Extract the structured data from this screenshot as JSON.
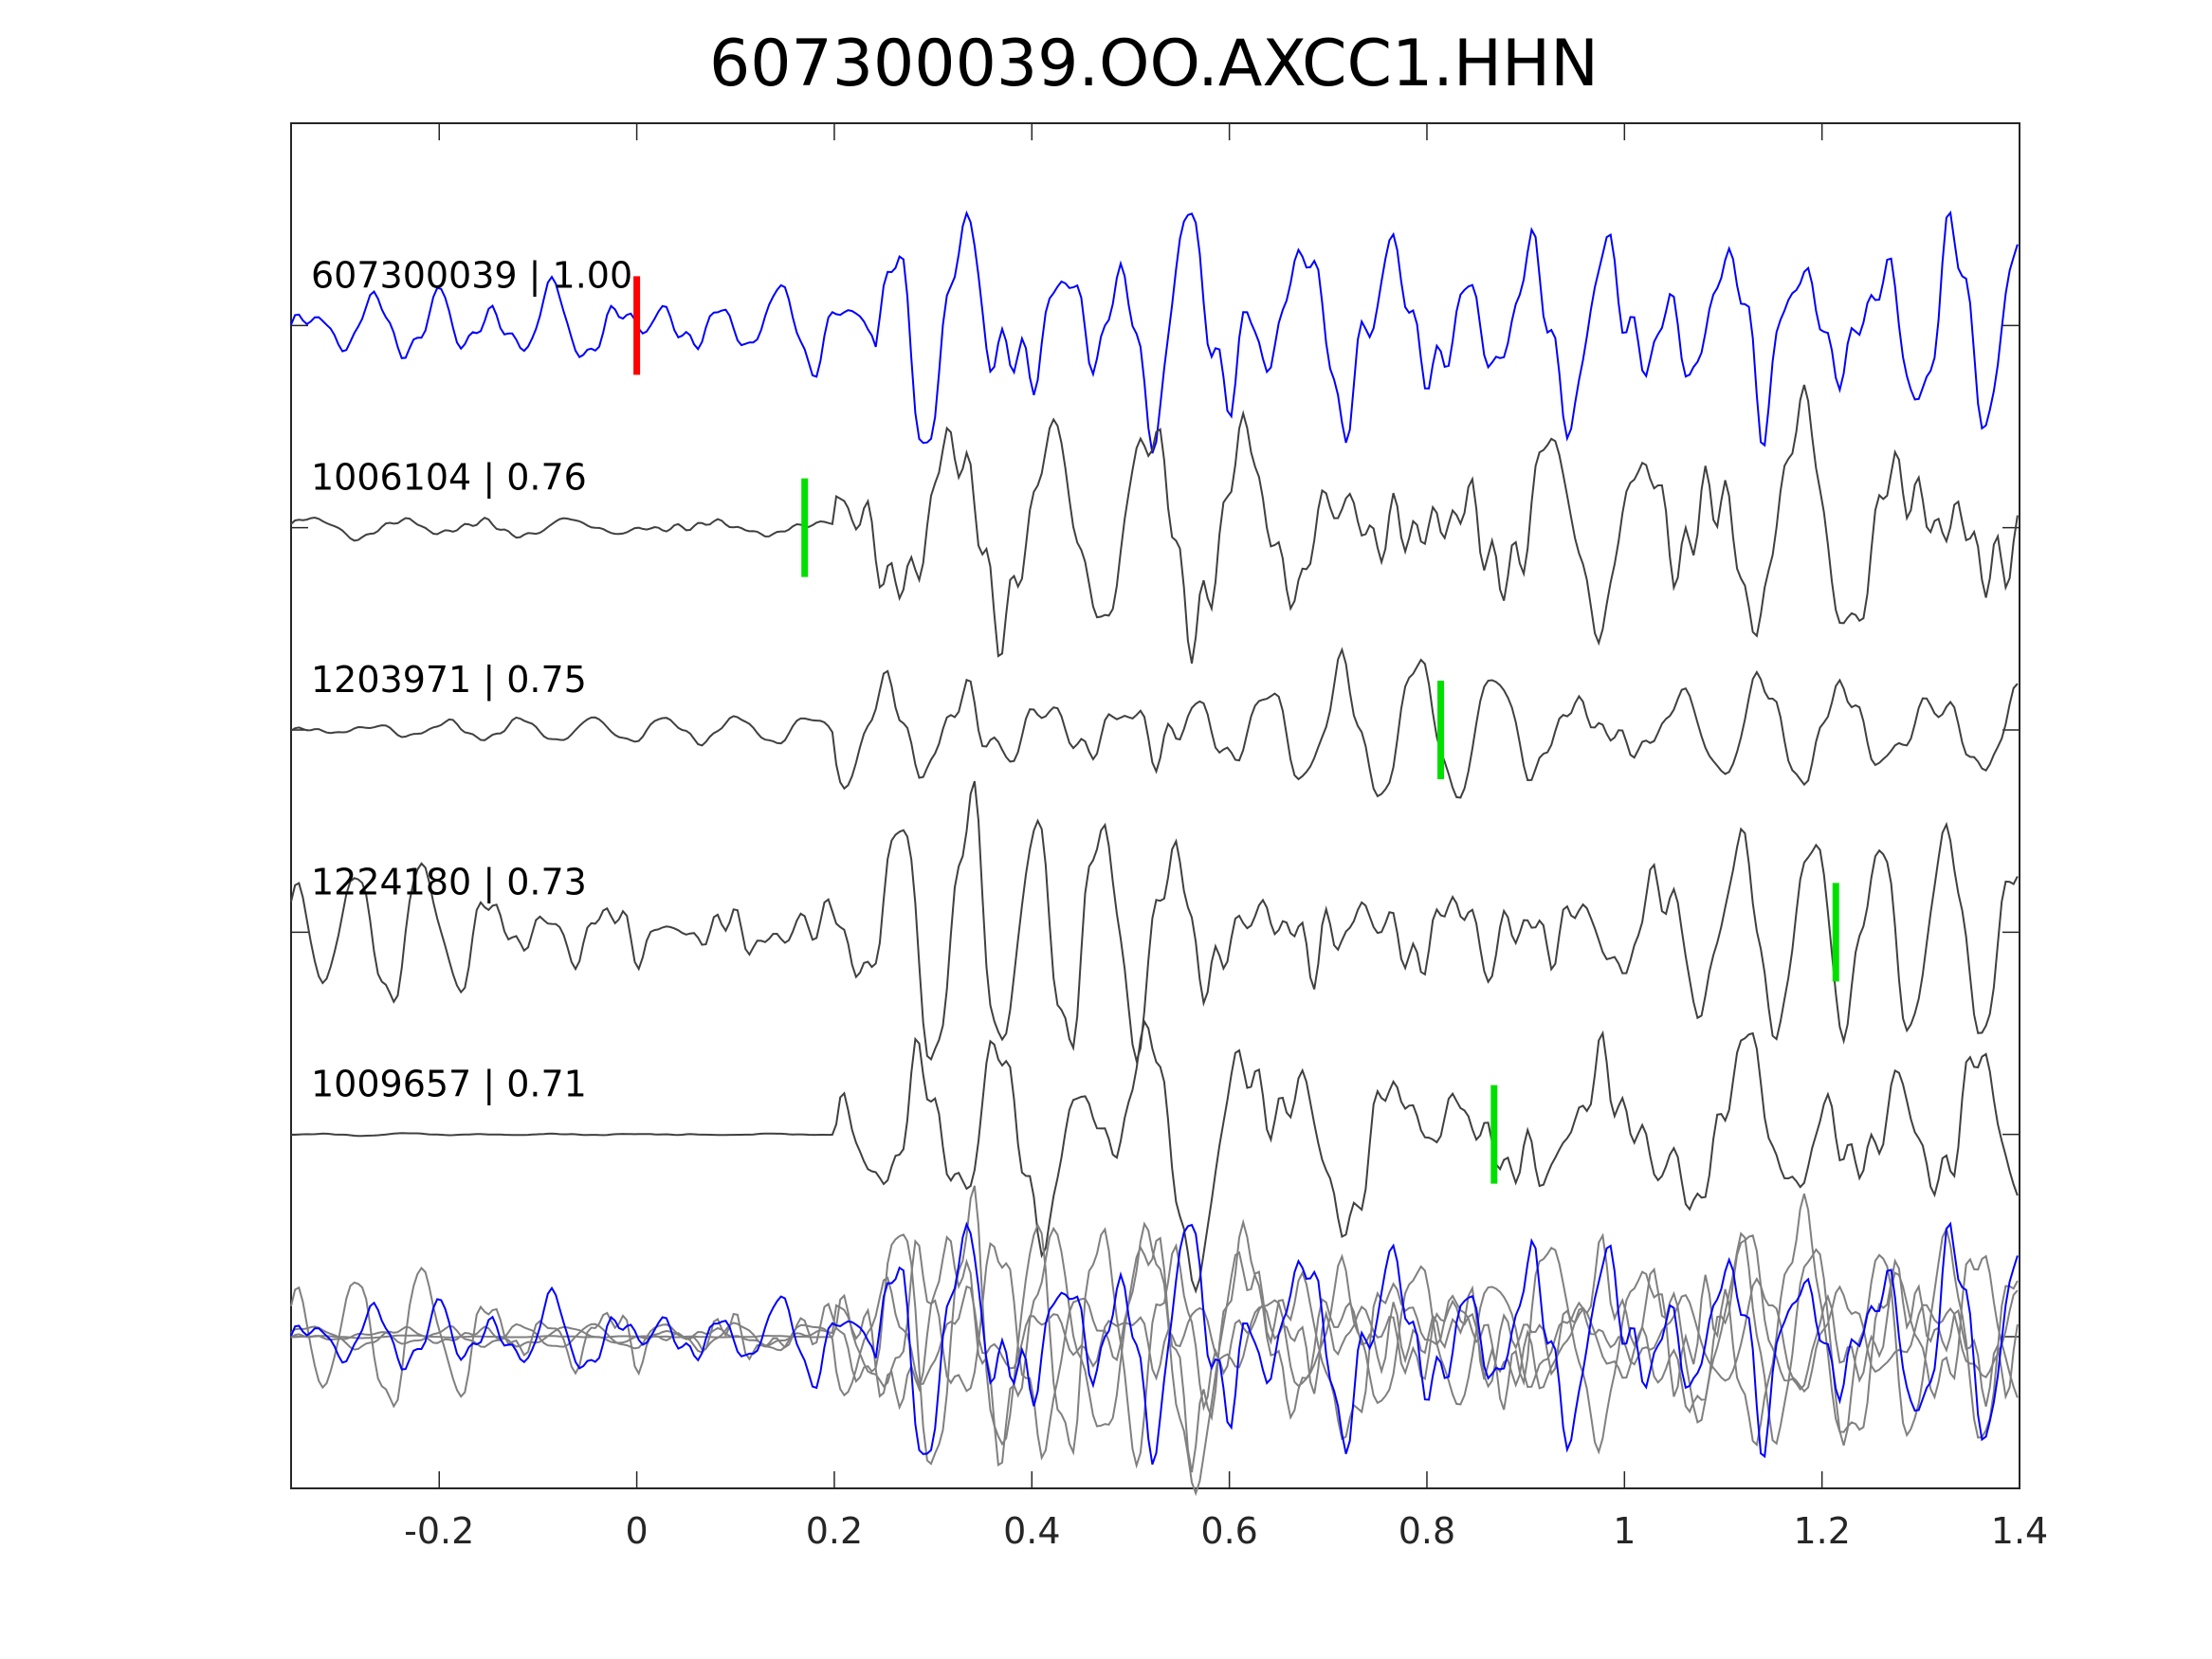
{
  "chart_data": {
    "type": "line",
    "title": "607300039.OO.AXCC1.HHN",
    "xlabel": "",
    "ylabel": "",
    "xlim": [
      -0.35,
      1.4
    ],
    "ylim": [
      -5.75,
      1.0
    ],
    "xticks": [
      "-0.2",
      "0",
      "0.2",
      "0.4",
      "0.6",
      "0.8",
      "1",
      "1.2",
      "1.4"
    ],
    "xtick_values": [
      -0.2,
      0,
      0.2,
      0.4,
      0.6,
      0.8,
      1.0,
      1.2,
      1.4
    ],
    "grid": false,
    "colors": {
      "master": "#0000ff",
      "trace": "#404040",
      "overlay": "#808080",
      "master_pick": "#ff0000",
      "pick": "#00e000",
      "axis": "#262626"
    },
    "traces": [
      {
        "label": "607300039 | 1.00",
        "offset": 0,
        "pick_time": 0.0,
        "pick_color": "#ff0000",
        "color": "#0000ff",
        "onset": 0.24,
        "pre_amp": 0.18,
        "post_amp": 0.5,
        "freq": 12,
        "seed": 3
      },
      {
        "label": "1006104 | 0.76",
        "offset": -1,
        "pick_time": 0.17,
        "pick_color": "#00e000",
        "color": "#404040",
        "onset": 0.2,
        "pre_amp": 0.05,
        "post_amp": 0.5,
        "freq": 9,
        "seed": 11
      },
      {
        "label": "1203971 | 0.75",
        "offset": -2,
        "pick_time": 0.814,
        "pick_color": "#00e000",
        "color": "#404040",
        "onset": 0.2,
        "pre_amp": 0.07,
        "post_amp": 0.28,
        "freq": 10,
        "seed": 23
      },
      {
        "label": "1224180 | 0.73",
        "offset": -3,
        "pick_time": 1.214,
        "pick_color": "#00e000",
        "color": "#404040",
        "onset": 0.25,
        "pre_amp": 0.25,
        "post_amp": 0.45,
        "freq": 11,
        "seed": 37
      },
      {
        "label": "1009657 | 0.71",
        "offset": -4,
        "pick_time": 0.868,
        "pick_color": "#00e000",
        "color": "#404040",
        "onset": 0.2,
        "pre_amp": 0.005,
        "post_amp": 0.45,
        "freq": 9,
        "seed": 51
      }
    ],
    "overlay_offset": -5
  }
}
